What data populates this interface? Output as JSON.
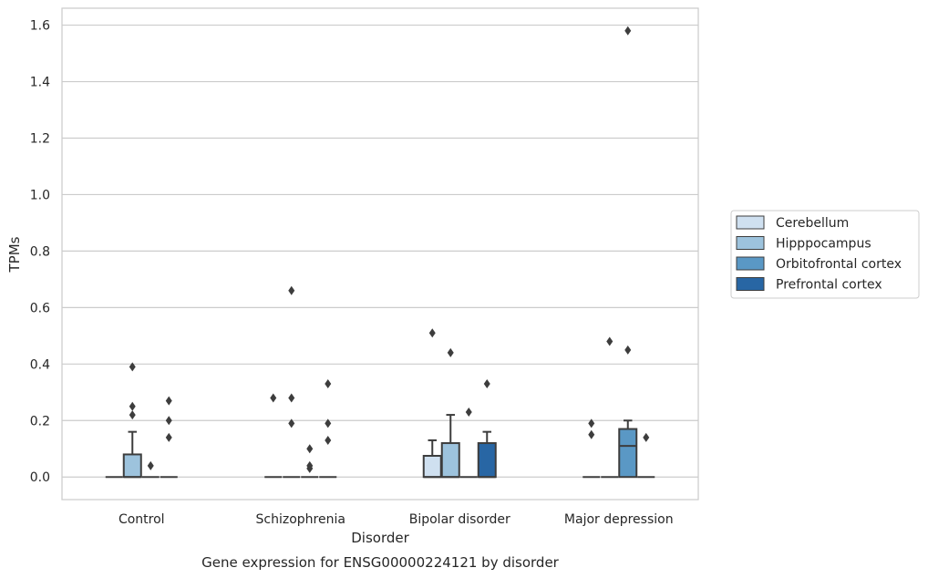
{
  "chart_data": {
    "type": "box",
    "caption": "Gene expression for ENSG00000224121 by disorder",
    "xlabel": "Disorder",
    "ylabel": "TPMs",
    "ylim": [
      -0.08,
      1.66
    ],
    "yticks": [
      "0.0",
      "0.2",
      "0.4",
      "0.6",
      "0.8",
      "1.0",
      "1.2",
      "1.4",
      "1.6"
    ],
    "grid": true,
    "legend_position": "center-right",
    "categories": [
      "Control",
      "Schizophrenia",
      "Bipolar disorder",
      "Major depression"
    ],
    "series": [
      {
        "name": "Cerebellum",
        "color": "#cfe0f0",
        "boxes": [
          {
            "q1": 0,
            "median": 0,
            "q3": 0,
            "whisker_low": 0,
            "whisker_high": 0,
            "outliers": []
          },
          {
            "q1": 0,
            "median": 0,
            "q3": 0,
            "whisker_low": 0,
            "whisker_high": 0,
            "outliers": [
              0.28
            ]
          },
          {
            "q1": 0,
            "median": 0,
            "q3": 0.075,
            "whisker_low": 0,
            "whisker_high": 0.13,
            "outliers": [
              0.51
            ]
          },
          {
            "q1": 0,
            "median": 0,
            "q3": 0,
            "whisker_low": 0,
            "whisker_high": 0,
            "outliers": [
              0.15,
              0.19
            ]
          }
        ]
      },
      {
        "name": "Hipppocampus",
        "color": "#9dc3dd",
        "boxes": [
          {
            "q1": 0,
            "median": 0,
            "q3": 0.08,
            "whisker_low": 0,
            "whisker_high": 0.16,
            "outliers": [
              0.22,
              0.25,
              0.39
            ]
          },
          {
            "q1": 0,
            "median": 0,
            "q3": 0,
            "whisker_low": 0,
            "whisker_high": 0,
            "outliers": [
              0.19,
              0.28,
              0.66
            ]
          },
          {
            "q1": 0,
            "median": 0,
            "q3": 0.12,
            "whisker_low": 0,
            "whisker_high": 0.22,
            "outliers": [
              0.44
            ]
          },
          {
            "q1": 0,
            "median": 0,
            "q3": 0,
            "whisker_low": 0,
            "whisker_high": 0,
            "outliers": [
              0.48
            ]
          }
        ]
      },
      {
        "name": "Orbitofrontal cortex",
        "color": "#5a98c5",
        "boxes": [
          {
            "q1": 0,
            "median": 0,
            "q3": 0,
            "whisker_low": 0,
            "whisker_high": 0,
            "outliers": [
              0.04
            ]
          },
          {
            "q1": 0,
            "median": 0,
            "q3": 0,
            "whisker_low": 0,
            "whisker_high": 0,
            "outliers": [
              0.03,
              0.04,
              0.1
            ]
          },
          {
            "q1": 0,
            "median": 0,
            "q3": 0,
            "whisker_low": 0,
            "whisker_high": 0,
            "outliers": [
              0.23
            ]
          },
          {
            "q1": 0,
            "median": 0.11,
            "q3": 0.17,
            "whisker_low": 0,
            "whisker_high": 0.2,
            "outliers": [
              0.45,
              1.58
            ]
          }
        ]
      },
      {
        "name": "Prefrontal cortex",
        "color": "#2866a4",
        "boxes": [
          {
            "q1": 0,
            "median": 0,
            "q3": 0,
            "whisker_low": 0,
            "whisker_high": 0,
            "outliers": [
              0.14,
              0.2,
              0.27
            ]
          },
          {
            "q1": 0,
            "median": 0,
            "q3": 0,
            "whisker_low": 0,
            "whisker_high": 0,
            "outliers": [
              0.13,
              0.19,
              0.33
            ]
          },
          {
            "q1": 0,
            "median": 0,
            "q3": 0.12,
            "whisker_low": 0,
            "whisker_high": 0.16,
            "outliers": [
              0.33
            ]
          },
          {
            "q1": 0,
            "median": 0,
            "q3": 0,
            "whisker_low": 0,
            "whisker_high": 0,
            "outliers": [
              0.14
            ]
          }
        ]
      }
    ]
  }
}
